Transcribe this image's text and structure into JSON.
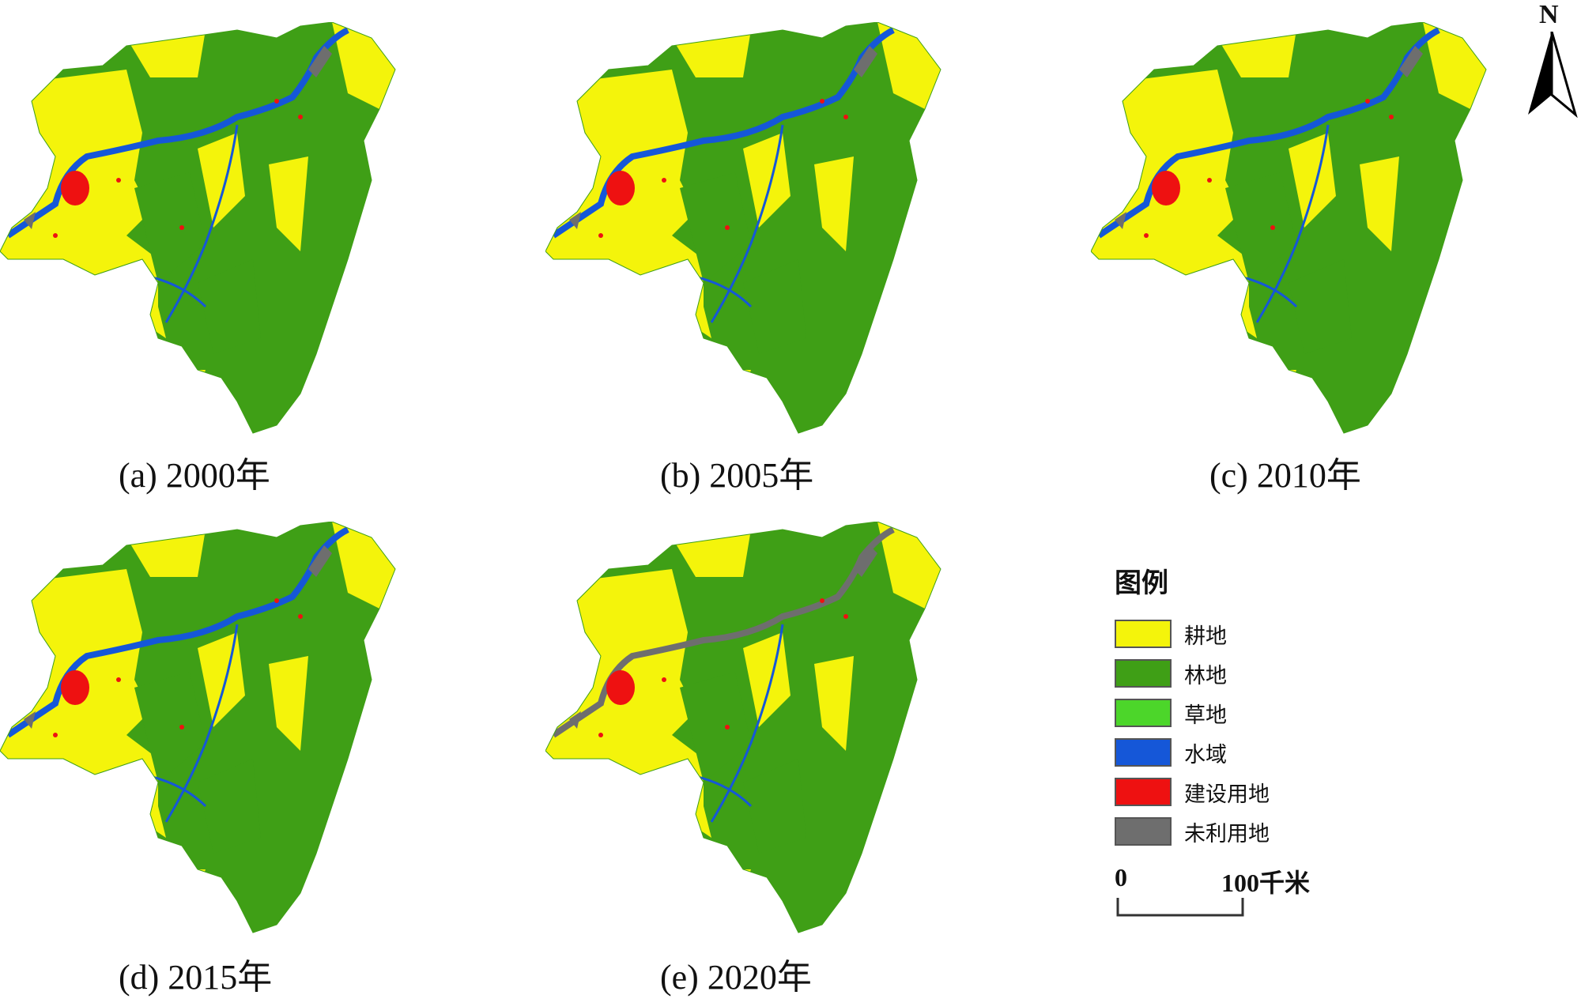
{
  "colors": {
    "cropland": "#f4f40b",
    "forest": "#3f9f16",
    "grassland": "#4cd62a",
    "water": "#1557d8",
    "built": "#ee1111",
    "unused": "#6e6e6e"
  },
  "maps": [
    {
      "caption": "(a) 2000年"
    },
    {
      "caption": "(b) 2005年"
    },
    {
      "caption": "(c) 2010年"
    },
    {
      "caption": "(d) 2015年"
    },
    {
      "caption": "(e) 2020年"
    }
  ],
  "legend": {
    "title": "图例",
    "items": [
      {
        "label": "耕地",
        "color": "#f4f40b"
      },
      {
        "label": "林地",
        "color": "#3f9f16"
      },
      {
        "label": "草地",
        "color": "#4cd62a"
      },
      {
        "label": "水域",
        "color": "#1557d8"
      },
      {
        "label": "建设用地",
        "color": "#ee1111"
      },
      {
        "label": "未利用地",
        "color": "#6e6e6e"
      }
    ]
  },
  "scale_bar": {
    "start": "0",
    "end": "100千米"
  },
  "north_arrow": {
    "label": "N"
  }
}
